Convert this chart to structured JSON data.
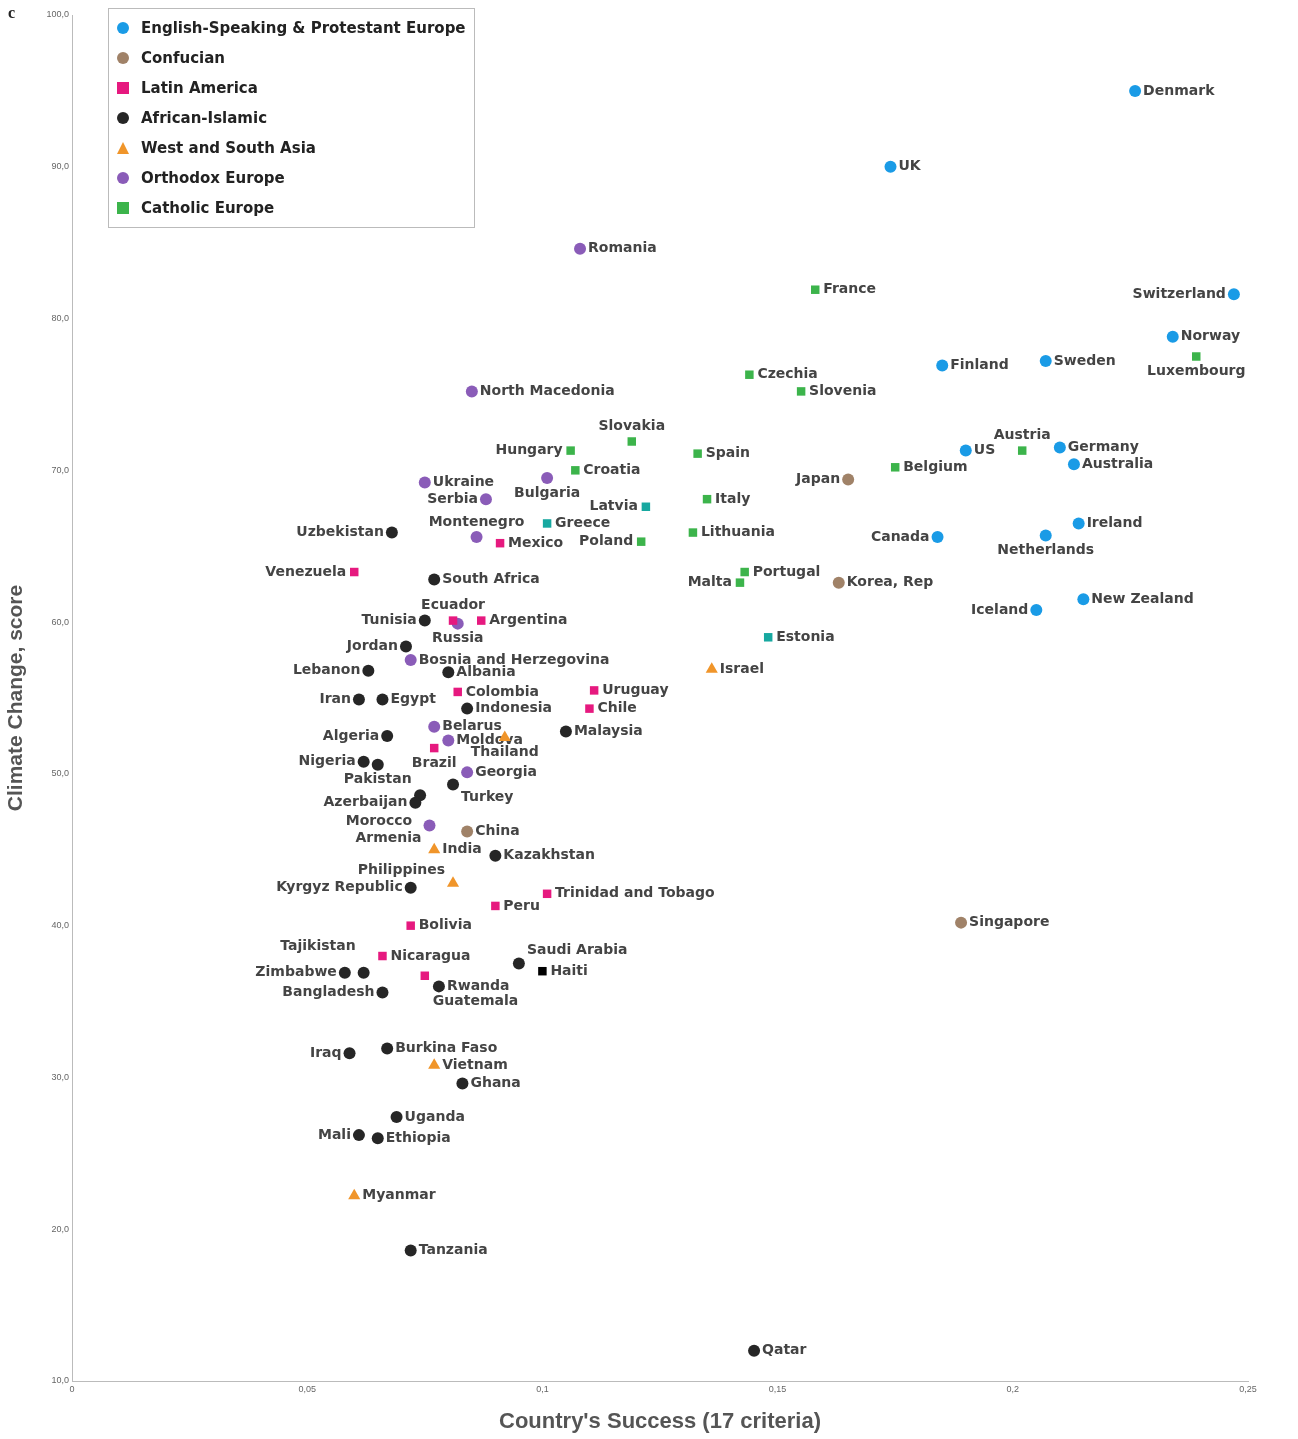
{
  "chart_data": {
    "type": "scatter",
    "title": "c",
    "xlabel": "Country's Success (17 criteria)",
    "ylabel": "Climate Change, score",
    "legend": "top left",
    "xlim": [
      0,
      0.25
    ],
    "xticks": [
      {
        "value": 0,
        "label": "0"
      },
      {
        "value": 0.05,
        "label": "0,05"
      },
      {
        "value": 0.1,
        "label": "0,1"
      },
      {
        "value": 0.15,
        "label": "0,15"
      },
      {
        "value": 0.2,
        "label": "0,2"
      },
      {
        "value": 0.25,
        "label": "0,25"
      }
    ],
    "ylim": [
      10,
      100
    ],
    "yticks": [
      {
        "value": 10,
        "label": "10,0"
      },
      {
        "value": 20,
        "label": "20,0"
      },
      {
        "value": 30,
        "label": "30,0"
      },
      {
        "value": 40,
        "label": "40,0"
      },
      {
        "value": 50,
        "label": "50,0"
      },
      {
        "value": 60,
        "label": "60,0"
      },
      {
        "value": 70,
        "label": "70,0"
      },
      {
        "value": 80,
        "label": "80,0"
      },
      {
        "value": 90,
        "label": "90,0"
      },
      {
        "value": 100,
        "label": "100,0"
      }
    ],
    "series": [
      {
        "name": "English-Speaking & Protestant Europe",
        "color": "#1a9be6",
        "marker": "circle",
        "x": [
          0.226,
          0.174,
          0.247,
          0.234,
          0.185,
          0.207,
          0.19,
          0.21,
          0.213,
          0.214,
          0.207,
          0.184,
          0.205,
          0.215
        ],
        "values": [
          95.0,
          90.0,
          81.6,
          78.8,
          76.9,
          77.2,
          71.3,
          71.5,
          70.4,
          66.5,
          65.7,
          65.6,
          60.8,
          61.5
        ]
      },
      {
        "name": "Confucian",
        "color": "#a08268",
        "marker": "circle",
        "x": [
          0.165,
          0.163,
          0.189,
          0.084
        ],
        "values": [
          69.4,
          62.6,
          40.2,
          46.2
        ]
      },
      {
        "name": "Latin America",
        "color": "#e6197f",
        "marker": "square",
        "colors": [
          "#e6197f",
          "#e6197f",
          "#e6197f",
          "#e6197f",
          "#e6197f",
          "#e6197f",
          "#e6197f",
          "#e6197f",
          "#e6197f",
          "#e6197f",
          "#e6197f",
          "#e6197f",
          "#e6197f",
          "#000000"
        ],
        "x": [
          0.091,
          0.06,
          0.081,
          0.087,
          0.082,
          0.111,
          0.11,
          0.077,
          0.101,
          0.09,
          0.072,
          0.066,
          0.075,
          0.1
        ],
        "values": [
          65.2,
          63.3,
          60.1,
          60.1,
          55.4,
          55.5,
          54.3,
          51.7,
          42.1,
          41.3,
          40.0,
          38.0,
          36.7,
          37.0
        ]
      },
      {
        "name": "African-Islamic",
        "color": "#262626",
        "marker": "circle",
        "x": [
          0.068,
          0.077,
          0.075,
          0.071,
          0.063,
          0.08,
          0.061,
          0.066,
          0.084,
          0.105,
          0.067,
          0.062,
          0.065,
          0.081,
          0.074,
          0.073,
          0.09,
          0.072,
          0.058,
          0.062,
          0.066,
          0.078,
          0.095,
          0.059,
          0.067,
          0.083,
          0.069,
          0.061,
          0.065,
          0.072,
          0.145
        ],
        "values": [
          65.9,
          62.8,
          60.1,
          58.4,
          56.8,
          56.7,
          54.9,
          54.9,
          54.3,
          52.8,
          52.5,
          50.8,
          50.6,
          49.3,
          48.6,
          48.1,
          44.6,
          42.5,
          36.9,
          36.9,
          35.6,
          36.0,
          37.5,
          31.6,
          31.9,
          29.6,
          27.4,
          26.2,
          26.0,
          18.6,
          12.0
        ]
      },
      {
        "name": "West and South Asia",
        "color": "#f0952a",
        "marker": "triangle",
        "x": [
          0.136,
          0.092,
          0.077,
          0.081,
          0.077,
          0.06
        ],
        "values": [
          56.9,
          52.4,
          45.0,
          42.8,
          30.8,
          22.2
        ]
      },
      {
        "name": "Orthodox Europe",
        "color": "#8a5cb8",
        "marker": "circle",
        "x": [
          0.108,
          0.085,
          0.075,
          0.101,
          0.088,
          0.086,
          0.082,
          0.072,
          0.077,
          0.08,
          0.084,
          0.076
        ],
        "values": [
          84.6,
          75.2,
          69.2,
          69.5,
          68.1,
          65.6,
          59.9,
          57.5,
          53.1,
          52.2,
          50.1,
          46.6
        ]
      },
      {
        "name": "Catholic Europe",
        "color": "#3cb44b",
        "marker": "square",
        "colors": [
          "#3cb44b",
          "#3cb44b",
          "#3cb44b",
          "#3cb44b",
          "#3cb44b",
          "#3cb44b",
          "#3cb44b",
          "#3cb44b",
          "#3cb44b",
          "#3cb44b",
          "#3cb44b",
          "#17a8a0",
          "#17a8a0",
          "#3cb44b",
          "#3cb44b",
          "#3cb44b",
          "#3cb44b",
          "#17a8a0"
        ],
        "x": [
          0.158,
          0.144,
          0.155,
          0.239,
          0.119,
          0.106,
          0.133,
          0.107,
          0.175,
          0.202,
          0.135,
          0.122,
          0.101,
          0.132,
          0.121,
          0.143,
          0.142,
          0.148
        ],
        "values": [
          81.9,
          76.3,
          75.2,
          77.5,
          71.9,
          71.3,
          71.1,
          70.0,
          70.2,
          71.3,
          68.1,
          67.6,
          66.5,
          65.9,
          65.3,
          63.3,
          62.6,
          59.0
        ]
      }
    ],
    "annotations": [
      {
        "text": "Denmark",
        "x": 0.226,
        "y": 95.0
      },
      {
        "text": "UK",
        "x": 0.174,
        "y": 90.0
      },
      {
        "text": "Switzerland",
        "x": 0.247,
        "y": 81.6
      },
      {
        "text": "Norway",
        "x": 0.234,
        "y": 78.8
      },
      {
        "text": "Finland",
        "x": 0.185,
        "y": 76.9
      },
      {
        "text": "Sweden",
        "x": 0.207,
        "y": 77.2
      },
      {
        "text": "US",
        "x": 0.19,
        "y": 71.3
      },
      {
        "text": "Germany",
        "x": 0.21,
        "y": 71.5
      },
      {
        "text": "Australia",
        "x": 0.213,
        "y": 70.4
      },
      {
        "text": "Ireland",
        "x": 0.214,
        "y": 66.5
      },
      {
        "text": "Netherlands",
        "x": 0.207,
        "y": 65.7
      },
      {
        "text": "Canada",
        "x": 0.184,
        "y": 65.6
      },
      {
        "text": "Iceland",
        "x": 0.205,
        "y": 60.8
      },
      {
        "text": "New Zealand",
        "x": 0.215,
        "y": 61.5
      },
      {
        "text": "Japan",
        "x": 0.165,
        "y": 69.4
      },
      {
        "text": "Korea, Rep",
        "x": 0.163,
        "y": 62.6
      },
      {
        "text": "Singapore",
        "x": 0.189,
        "y": 40.2
      },
      {
        "text": "China",
        "x": 0.084,
        "y": 46.2
      },
      {
        "text": "Mexico",
        "x": 0.091,
        "y": 65.2
      },
      {
        "text": "Venezuela",
        "x": 0.06,
        "y": 63.3
      },
      {
        "text": "Ecuador",
        "x": 0.081,
        "y": 60.1
      },
      {
        "text": "Argentina",
        "x": 0.087,
        "y": 60.1
      },
      {
        "text": "Colombia",
        "x": 0.082,
        "y": 55.4
      },
      {
        "text": "Uruguay",
        "x": 0.111,
        "y": 55.5
      },
      {
        "text": "Chile",
        "x": 0.11,
        "y": 54.3
      },
      {
        "text": "Brazil",
        "x": 0.077,
        "y": 51.7
      },
      {
        "text": "Trinidad and Tobago",
        "x": 0.101,
        "y": 42.1
      },
      {
        "text": "Peru",
        "x": 0.09,
        "y": 41.3
      },
      {
        "text": "Bolivia",
        "x": 0.072,
        "y": 40.0
      },
      {
        "text": "Nicaragua",
        "x": 0.066,
        "y": 38.0
      },
      {
        "text": "Guatemala",
        "x": 0.075,
        "y": 36.7
      },
      {
        "text": "Haiti",
        "x": 0.1,
        "y": 37.0
      },
      {
        "text": "Uzbekistan",
        "x": 0.068,
        "y": 65.9
      },
      {
        "text": "South Africa",
        "x": 0.077,
        "y": 62.8
      },
      {
        "text": "Tunisia",
        "x": 0.075,
        "y": 60.1
      },
      {
        "text": "Jordan",
        "x": 0.071,
        "y": 58.4
      },
      {
        "text": "Lebanon",
        "x": 0.063,
        "y": 56.8
      },
      {
        "text": "Albania",
        "x": 0.08,
        "y": 56.7
      },
      {
        "text": "Iran",
        "x": 0.061,
        "y": 54.9
      },
      {
        "text": "Egypt",
        "x": 0.066,
        "y": 54.9
      },
      {
        "text": "Indonesia",
        "x": 0.084,
        "y": 54.3
      },
      {
        "text": "Malaysia",
        "x": 0.105,
        "y": 52.8
      },
      {
        "text": "Algeria",
        "x": 0.067,
        "y": 52.5
      },
      {
        "text": "Nigeria",
        "x": 0.062,
        "y": 50.8
      },
      {
        "text": "Pakistan",
        "x": 0.065,
        "y": 50.6
      },
      {
        "text": "Turkey",
        "x": 0.081,
        "y": 49.3
      },
      {
        "text": "Morocco",
        "x": 0.074,
        "y": 48.6
      },
      {
        "text": "Azerbaijan",
        "x": 0.073,
        "y": 48.1
      },
      {
        "text": "Kazakhstan",
        "x": 0.09,
        "y": 44.6
      },
      {
        "text": "Kyrgyz Republic",
        "x": 0.072,
        "y": 42.5
      },
      {
        "text": "Zimbabwe",
        "x": 0.058,
        "y": 36.9
      },
      {
        "text": "Tajikistan",
        "x": 0.062,
        "y": 36.9
      },
      {
        "text": "Bangladesh",
        "x": 0.066,
        "y": 35.6
      },
      {
        "text": "Rwanda",
        "x": 0.078,
        "y": 36.0
      },
      {
        "text": "Saudi Arabia",
        "x": 0.095,
        "y": 37.5
      },
      {
        "text": "Iraq",
        "x": 0.059,
        "y": 31.6
      },
      {
        "text": "Burkina Faso",
        "x": 0.067,
        "y": 31.9
      },
      {
        "text": "Ghana",
        "x": 0.083,
        "y": 29.6
      },
      {
        "text": "Uganda",
        "x": 0.069,
        "y": 27.4
      },
      {
        "text": "Mali",
        "x": 0.061,
        "y": 26.2
      },
      {
        "text": "Ethiopia",
        "x": 0.065,
        "y": 26.0
      },
      {
        "text": "Tanzania",
        "x": 0.072,
        "y": 18.6
      },
      {
        "text": "Qatar",
        "x": 0.145,
        "y": 12.0
      },
      {
        "text": "Israel",
        "x": 0.136,
        "y": 56.9
      },
      {
        "text": "Thailand",
        "x": 0.092,
        "y": 52.4
      },
      {
        "text": "India",
        "x": 0.077,
        "y": 45.0
      },
      {
        "text": "Philippines",
        "x": 0.081,
        "y": 42.8
      },
      {
        "text": "Vietnam",
        "x": 0.077,
        "y": 30.8
      },
      {
        "text": "Myanmar",
        "x": 0.06,
        "y": 22.2
      },
      {
        "text": "Romania",
        "x": 0.108,
        "y": 84.6
      },
      {
        "text": "North Macedonia",
        "x": 0.085,
        "y": 75.2
      },
      {
        "text": "Ukraine",
        "x": 0.075,
        "y": 69.2
      },
      {
        "text": "Bulgaria",
        "x": 0.101,
        "y": 69.5
      },
      {
        "text": "Serbia",
        "x": 0.088,
        "y": 68.1
      },
      {
        "text": "Montenegro",
        "x": 0.086,
        "y": 65.6
      },
      {
        "text": "Russia",
        "x": 0.082,
        "y": 59.9
      },
      {
        "text": "Bosnia and Herzegovina",
        "x": 0.072,
        "y": 57.5
      },
      {
        "text": "Belarus",
        "x": 0.077,
        "y": 53.1
      },
      {
        "text": "Moldova",
        "x": 0.08,
        "y": 52.2
      },
      {
        "text": "Georgia",
        "x": 0.084,
        "y": 50.1
      },
      {
        "text": "Armenia",
        "x": 0.076,
        "y": 46.6
      },
      {
        "text": "France",
        "x": 0.158,
        "y": 81.9
      },
      {
        "text": "Czechia",
        "x": 0.144,
        "y": 76.3
      },
      {
        "text": "Slovenia",
        "x": 0.155,
        "y": 75.2
      },
      {
        "text": "Luxembourg",
        "x": 0.239,
        "y": 77.5
      },
      {
        "text": "Slovakia",
        "x": 0.119,
        "y": 71.9
      },
      {
        "text": "Hungary",
        "x": 0.106,
        "y": 71.3
      },
      {
        "text": "Spain",
        "x": 0.133,
        "y": 71.1
      },
      {
        "text": "Croatia",
        "x": 0.107,
        "y": 70.0
      },
      {
        "text": "Belgium",
        "x": 0.175,
        "y": 70.2
      },
      {
        "text": "Austria",
        "x": 0.202,
        "y": 71.3
      },
      {
        "text": "Italy",
        "x": 0.135,
        "y": 68.1
      },
      {
        "text": "Latvia",
        "x": 0.122,
        "y": 67.6
      },
      {
        "text": "Greece",
        "x": 0.101,
        "y": 66.5
      },
      {
        "text": "Lithuania",
        "x": 0.132,
        "y": 65.9
      },
      {
        "text": "Poland",
        "x": 0.121,
        "y": 65.3
      },
      {
        "text": "Portugal",
        "x": 0.143,
        "y": 63.3
      },
      {
        "text": "Malta",
        "x": 0.142,
        "y": 62.6
      },
      {
        "text": "Estonia",
        "x": 0.148,
        "y": 59.0
      }
    ]
  }
}
